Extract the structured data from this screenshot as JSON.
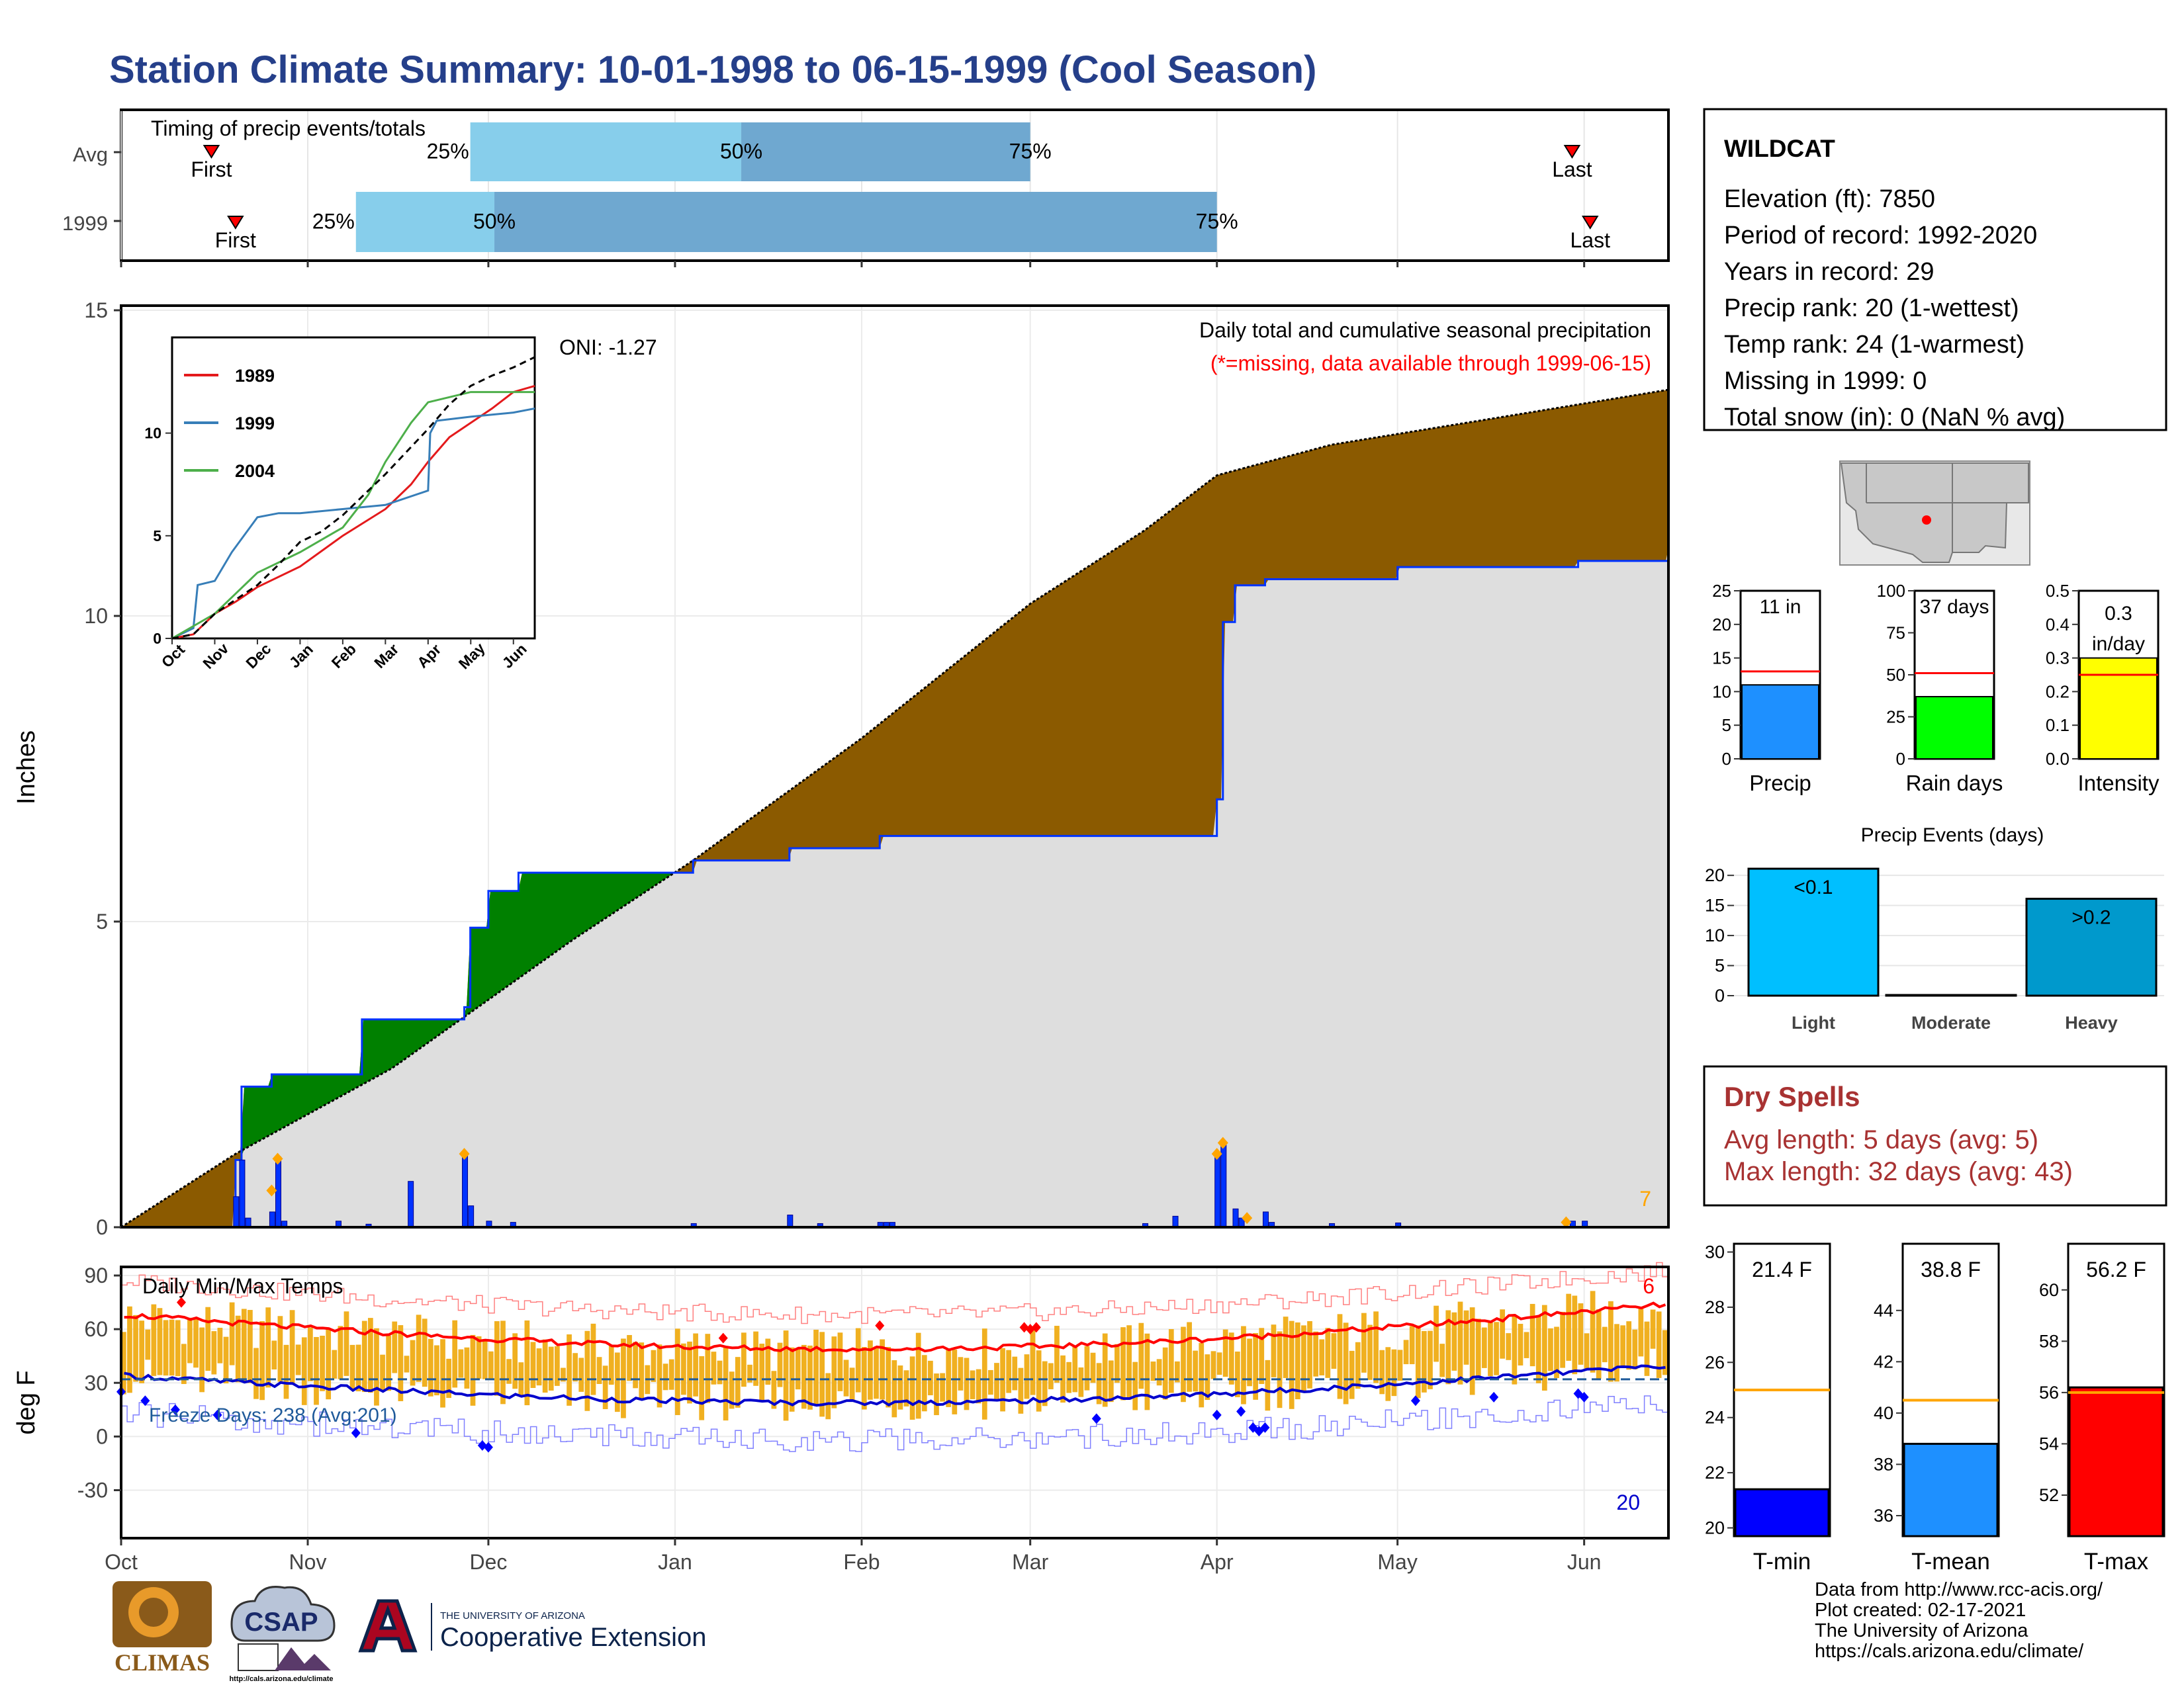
{
  "title": "Station Climate Summary: 10-01-1998 to 06-15-1999 (Cool Season)",
  "colors": {
    "title": "#253f8a",
    "precip_cum": "#8b5a00",
    "precip_avg_fill": "#dedede",
    "surplus": "#008000",
    "daily_bar": "#0033ff",
    "tmax": "#ff0000",
    "tmin": "#0000cc",
    "temp_bar": "#f0b020",
    "avg_line": "#ffa500",
    "dry": "#a83232"
  },
  "timing": {
    "label": "Timing of precip events/totals",
    "rows": [
      {
        "label": "Avg",
        "first_label": "First",
        "last_label": "Last",
        "q25": "25%",
        "q50": "50%",
        "q75": "75%"
      },
      {
        "label": "1999",
        "first_label": "First",
        "last_label": "Last",
        "q25": "25%",
        "q50": "50%",
        "q75": "75%"
      }
    ],
    "avg": {
      "first": "1998-10-16",
      "q25": "1998-11-28",
      "q50": "1999-01-12",
      "q75": "1999-03-01",
      "last": "1999-05-30"
    },
    "y1999": {
      "first": "1998-10-20",
      "q25": "1998-11-09",
      "q50": "1998-12-02",
      "q75": "1999-04-01",
      "last": "1999-06-02"
    }
  },
  "precip": {
    "ylabel": "Inches",
    "yticks": [
      0,
      5,
      10,
      15
    ],
    "ylim": [
      0,
      15
    ],
    "title_line1": "Daily total and cumulative seasonal precipitation",
    "title_line2": "(*=missing, data available through 1999-06-15)",
    "oni": "ONI: -1.27",
    "corner_count": "7"
  },
  "inset": {
    "yticks": [
      0,
      5,
      10
    ],
    "xticks": [
      "Oct",
      "Nov",
      "Dec",
      "Jan",
      "Feb",
      "Mar",
      "Apr",
      "May",
      "Jun"
    ],
    "legend": [
      {
        "name": "1989",
        "color": "#e41a1c"
      },
      {
        "name": "1999",
        "color": "#377eb8"
      },
      {
        "name": "2004",
        "color": "#4daf4a"
      }
    ]
  },
  "temp": {
    "ylabel": "deg F",
    "yticks": [
      -30,
      0,
      30,
      60,
      90
    ],
    "label": "Daily Min/Max Temps",
    "freeze": "Freeze Days: 238 (Avg:201)",
    "top_count": "6",
    "bottom_count": "20"
  },
  "xaxis": {
    "months": [
      "Oct",
      "Nov",
      "Dec",
      "Jan",
      "Feb",
      "Mar",
      "Apr",
      "May",
      "Jun"
    ]
  },
  "station": {
    "name": "WILDCAT",
    "lines": [
      "Elevation (ft): 7850",
      "Period of record: 1992-2020",
      "Years in record: 29",
      "Precip rank: 20 (1-wettest)",
      "Temp rank: 24 (1-warmest)",
      "Missing in 1999: 0",
      "Total snow (in): 0 (NaN % avg)"
    ]
  },
  "mini_bars": [
    {
      "label": "Precip",
      "value": 11,
      "avg": 13,
      "text": "11 in",
      "yticks": [
        "0",
        "5",
        "10",
        "15",
        "20",
        "25"
      ],
      "ymax": 25,
      "color": "#1e90ff"
    },
    {
      "label": "Rain days",
      "value": 37,
      "avg": 51,
      "text": "37 days",
      "yticks": [
        "0",
        "25",
        "50",
        "75",
        "100"
      ],
      "ymax": 100,
      "color": "#00ff00"
    },
    {
      "label": "Intensity",
      "value": 0.3,
      "avg": 0.25,
      "text": "0.3 in/day",
      "text1": "0.3",
      "text2": "in/day",
      "yticks": [
        "0.0",
        "0.1",
        "0.2",
        "0.3",
        "0.4",
        "0.5"
      ],
      "ymax": 0.5,
      "color": "#ffff00"
    }
  ],
  "events": {
    "title": "Precip Events (days)",
    "yticks": [
      0,
      5,
      10,
      15,
      20
    ],
    "categories": [
      "Light",
      "Moderate",
      "Heavy"
    ],
    "values": [
      21,
      0,
      16
    ],
    "bar_labels": [
      "<0.1",
      "",
      ">0.2"
    ],
    "colors": [
      "#00bfff",
      "#00bfff",
      "#0099cc"
    ]
  },
  "dry": {
    "title": "Dry Spells",
    "avg": "Avg length: 5 days (avg: 5)",
    "max": "Max length: 32 days (avg: 43)"
  },
  "temp_bars": [
    {
      "label": "T-min",
      "value": 21.4,
      "avg": 25,
      "text": "21.4 F",
      "yticks": [
        20,
        22,
        24,
        26,
        28,
        30
      ],
      "ylim": [
        19.7,
        30.3
      ],
      "color": "#0000ff"
    },
    {
      "label": "T-mean",
      "value": 38.8,
      "avg": 40.5,
      "text": "38.8 F",
      "yticks": [
        36,
        38,
        40,
        42,
        44
      ],
      "ylim": [
        35.2,
        46.6
      ],
      "color": "#1e90ff"
    },
    {
      "label": "T-max",
      "value": 56.2,
      "avg": 56,
      "text": "56.2 F",
      "yticks": [
        52,
        54,
        56,
        58,
        60
      ],
      "ylim": [
        50.4,
        61.8
      ],
      "color": "#ff0000"
    }
  ],
  "footer": [
    "Data from http://www.rcc-acis.org/",
    "Plot created: 02-17-2021",
    "The University of Arizona",
    "https://cals.arizona.edu/climate/"
  ],
  "logos": {
    "climas": "CLIMAS",
    "csap": "CSAP",
    "csap_url": "http://cals.arizona.edu/climate",
    "ua_small": "THE UNIVERSITY OF ARIZONA",
    "ua_big": "Cooperative Extension"
  },
  "chart_data": {
    "type": "area",
    "title": "Daily total and cumulative seasonal precipitation",
    "ylabel": "Inches",
    "ylim": [
      0,
      15
    ],
    "cumulative_1999_x": [
      "1998-10-01",
      "1998-10-20",
      "1998-10-21",
      "1998-10-26",
      "1998-11-10",
      "1998-11-27",
      "1998-11-28",
      "1998-12-01",
      "1998-12-06",
      "1999-01-04",
      "1999-01-20",
      "1999-02-04",
      "1999-04-01",
      "1999-04-02",
      "1999-04-04",
      "1999-04-09",
      "1999-05-01",
      "1999-05-31",
      "1999-06-15"
    ],
    "cumulative_1999_y": [
      0,
      1.1,
      2.3,
      2.5,
      3.4,
      3.6,
      4.9,
      5.5,
      5.8,
      6.0,
      6.2,
      6.4,
      7.0,
      9.9,
      10.5,
      10.6,
      10.8,
      10.9,
      11.1
    ],
    "cumulative_avg_x": [
      "1998-10-01",
      "1998-10-20",
      "1998-11-15",
      "1998-12-15",
      "1999-01-04",
      "1999-02-01",
      "1999-03-01",
      "1999-03-20",
      "1999-04-01",
      "1999-04-20",
      "1999-05-15",
      "1999-06-15"
    ],
    "cumulative_avg_y": [
      0,
      1.2,
      2.6,
      4.7,
      6.0,
      8.0,
      10.2,
      11.4,
      12.3,
      12.8,
      13.2,
      13.7
    ]
  }
}
